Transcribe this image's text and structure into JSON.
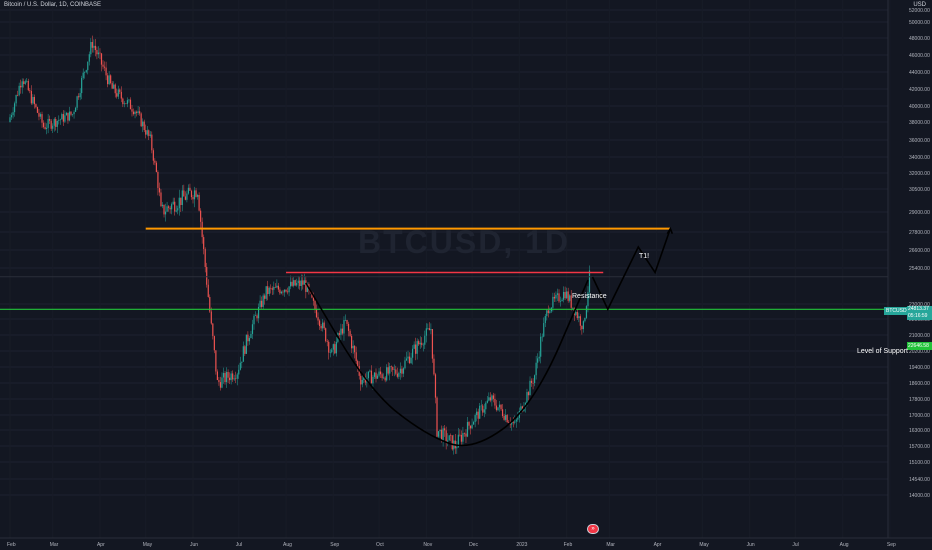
{
  "header": {
    "title": "Bitcoin / U.S. Dollar, 1D, COINBASE",
    "currency": "USD",
    "watermark": "BTCUSD, 1D"
  },
  "badges": {
    "ticker": "BTCUSD",
    "last_price": "24813.37",
    "countdown": "05:16:59",
    "support_price": "22646.58"
  },
  "annotations": {
    "target": "T1!",
    "resistance": "Resistance",
    "support": "Level of Support"
  },
  "colors": {
    "background": "#131722",
    "up": "#26a69a",
    "down": "#ef5350",
    "target_line": "#ff9800",
    "resistance_line": "#f23645",
    "support_line": "#22c33a",
    "drawing": "#000000"
  },
  "chart_data": {
    "type": "candlestick",
    "symbol": "BTCUSD",
    "timeframe": "1D",
    "exchange": "COINBASE",
    "y_ticks": [
      52000,
      50000,
      48000,
      46000,
      44000,
      42000,
      40000,
      38000,
      36000,
      34000,
      32000,
      30500,
      29000,
      27800,
      26600,
      25400,
      23000,
      22000,
      21000,
      20200,
      19400,
      18600,
      17800,
      17000,
      16300,
      15700,
      15100,
      14540,
      14000
    ],
    "y_tick_labels": [
      "52000.00",
      "50000.00",
      "48000.00",
      "46000.00",
      "44000.00",
      "42000.00",
      "40000.00",
      "38000.00",
      "36000.00",
      "34000.00",
      "32000.00",
      "30500.00",
      "29000.00",
      "27800.00",
      "26600.00",
      "25400.00",
      "23000.00",
      "22000.00",
      "21000.00",
      "20200.00",
      "19400.00",
      "18600.00",
      "17800.00",
      "17000.00",
      "16300.00",
      "15700.00",
      "15100.00",
      "14540.00",
      "14000.00"
    ],
    "x_labels": [
      "Feb",
      "Mar",
      "Apr",
      "May",
      "Jun",
      "Jul",
      "Aug",
      "Sep",
      "Oct",
      "Nov",
      "Dec",
      "2023",
      "Feb",
      "Mar",
      "Apr",
      "May",
      "Jun",
      "Jul",
      "Aug",
      "Sep"
    ],
    "price_path": [
      [
        "2022-02-01",
        38000
      ],
      [
        "2022-02-10",
        43500
      ],
      [
        "2022-02-24",
        37500
      ],
      [
        "2022-03-15",
        39000
      ],
      [
        "2022-03-28",
        47500
      ],
      [
        "2022-04-10",
        42000
      ],
      [
        "2022-04-25",
        39500
      ],
      [
        "2022-05-05",
        36000
      ],
      [
        "2022-05-12",
        29000
      ],
      [
        "2022-06-05",
        30500
      ],
      [
        "2022-06-14",
        21500
      ],
      [
        "2022-06-18",
        18600
      ],
      [
        "2022-07-01",
        19200
      ],
      [
        "2022-07-20",
        23800
      ],
      [
        "2022-08-14",
        24400
      ],
      [
        "2022-09-01",
        20000
      ],
      [
        "2022-09-10",
        21800
      ],
      [
        "2022-09-20",
        18800
      ],
      [
        "2022-10-15",
        19200
      ],
      [
        "2022-11-05",
        21400
      ],
      [
        "2022-11-09",
        16300
      ],
      [
        "2022-11-21",
        15700
      ],
      [
        "2022-12-14",
        17800
      ],
      [
        "2022-12-30",
        16500
      ],
      [
        "2023-01-12",
        19000
      ],
      [
        "2023-01-21",
        22800
      ],
      [
        "2023-02-01",
        23800
      ],
      [
        "2023-02-13",
        21500
      ],
      [
        "2023-02-17",
        24800
      ]
    ],
    "last_price": 24813.37,
    "levels": [
      {
        "name": "T1!",
        "price": 28000
      },
      {
        "name": "Resistance",
        "price": 25100
      },
      {
        "name": "Level of Support",
        "price": 22646.58
      }
    ],
    "projection": [
      [
        "2023-02-18",
        24800
      ],
      [
        "2023-02-28",
        22650
      ],
      [
        "2023-03-20",
        26800
      ],
      [
        "2023-03-31",
        25100
      ],
      [
        "2023-04-10",
        28000
      ]
    ],
    "cup_curve": [
      [
        "2022-08-14",
        24400
      ],
      [
        "2022-09-25",
        18200
      ],
      [
        "2022-11-01",
        16100
      ],
      [
        "2022-12-01",
        15500
      ],
      [
        "2023-01-10",
        17400
      ],
      [
        "2023-02-15",
        24600
      ]
    ]
  }
}
